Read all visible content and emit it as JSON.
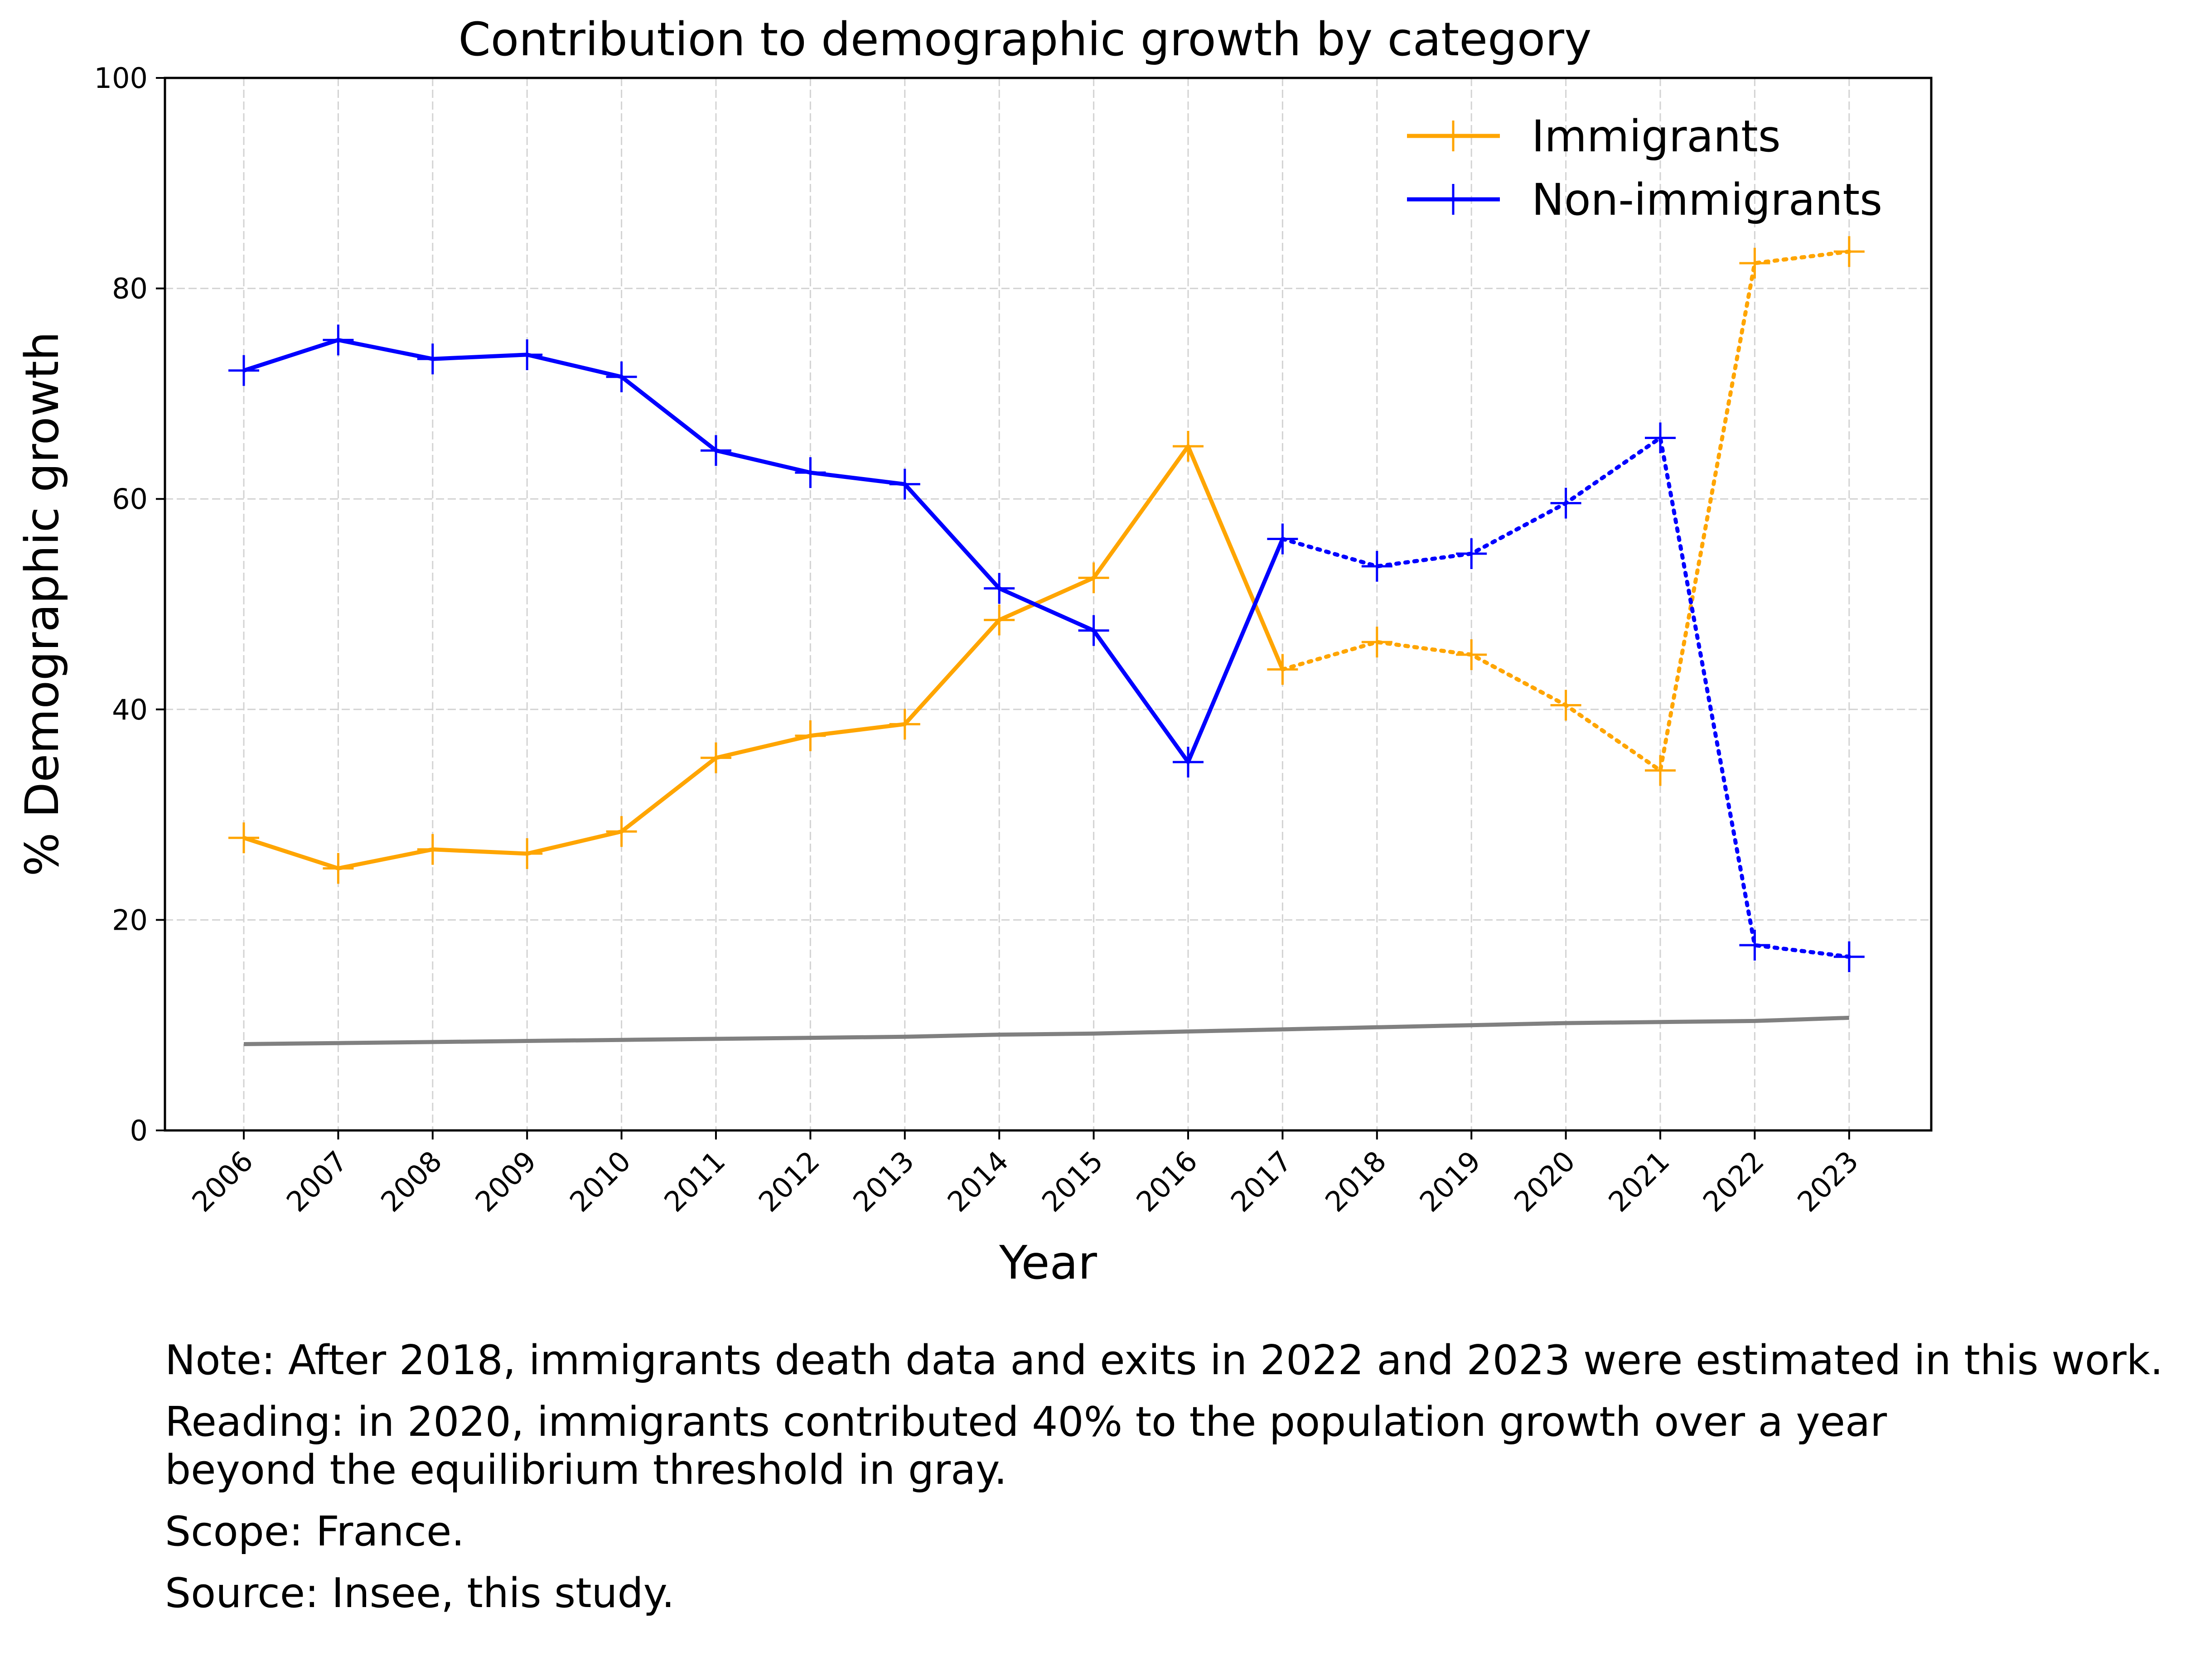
{
  "chart_data": {
    "type": "line",
    "title": "Contribution to demographic growth by category",
    "xlabel": "Year",
    "ylabel": "% Demographic growth",
    "ylim": [
      0,
      100
    ],
    "yticks": [
      0,
      20,
      40,
      60,
      80,
      100
    ],
    "grid": true,
    "legend_position": "top-right",
    "categories": [
      "2006",
      "2007",
      "2008",
      "2009",
      "2010",
      "2011",
      "2012",
      "2013",
      "2014",
      "2015",
      "2016",
      "2017",
      "2018",
      "2019",
      "2020",
      "2021",
      "2022",
      "2023"
    ],
    "series": [
      {
        "name": "Immigrants",
        "color": "#FFA500",
        "values": [
          27.8,
          24.9,
          26.7,
          26.3,
          28.4,
          35.4,
          37.5,
          38.6,
          48.5,
          52.5,
          65.0,
          43.8,
          46.4,
          45.2,
          40.4,
          34.2,
          82.4,
          83.5
        ],
        "solid_through": "2017"
      },
      {
        "name": "Non-immigrants",
        "color": "#0000FF",
        "values": [
          72.2,
          75.1,
          73.3,
          73.7,
          71.6,
          64.6,
          62.5,
          61.4,
          51.5,
          47.5,
          35.0,
          56.2,
          53.6,
          54.8,
          59.6,
          65.8,
          17.6,
          16.5
        ],
        "solid_through": "2017"
      },
      {
        "color": "#808080",
        "values": [
          8.2,
          8.3,
          8.4,
          8.5,
          8.6,
          8.7,
          8.8,
          8.9,
          9.1,
          9.2,
          9.4,
          9.6,
          9.8,
          10.0,
          10.2,
          10.3,
          10.4,
          10.7
        ]
      }
    ]
  },
  "notes": [
    "Note: After 2018, immigrants death data and exits in 2022 and 2023 were estimated in this work.",
    "Reading: in 2020, immigrants contributed 40% to the population growth over a year\nbeyond the equilibrium threshold in gray.",
    "Scope: France.",
    "Source: Insee, this study."
  ]
}
